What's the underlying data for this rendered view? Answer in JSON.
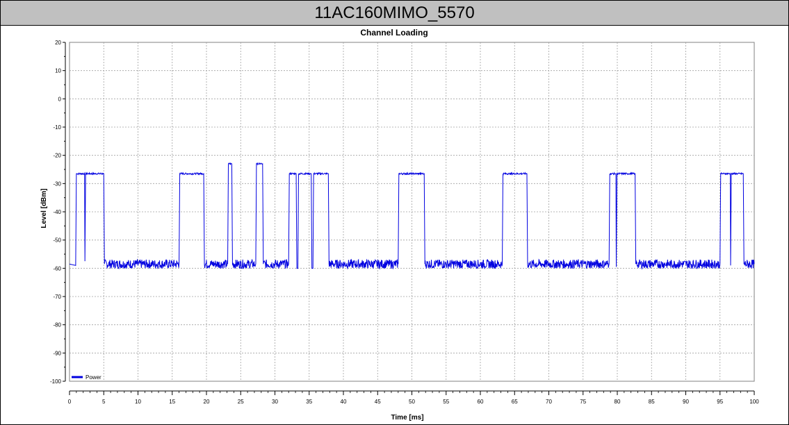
{
  "window": {
    "title": "11AC160MIMO_5570"
  },
  "chart_data": {
    "type": "line",
    "title": "Channel Loading",
    "xlabel": "Time [ms]",
    "ylabel": "Level [dBm]",
    "xlim": [
      0,
      100
    ],
    "ylim": [
      -100,
      20
    ],
    "xticks": [
      0,
      5,
      10,
      15,
      20,
      25,
      30,
      35,
      40,
      45,
      50,
      55,
      60,
      65,
      70,
      75,
      80,
      85,
      90,
      95,
      100
    ],
    "yticks": [
      20,
      10,
      0,
      -10,
      -20,
      -30,
      -40,
      -50,
      -60,
      -70,
      -80,
      -90,
      -100
    ],
    "grid": true,
    "legend": {
      "position": "bottom-left",
      "entries": [
        "Power"
      ]
    },
    "series": [
      {
        "name": "Power",
        "color": "#0000e0",
        "points": [
          [
            0,
            -58.5
          ],
          [
            0.9,
            -59
          ],
          [
            1.0,
            -26.5
          ],
          [
            2.2,
            -26.5
          ],
          [
            2.25,
            -57.5
          ],
          [
            2.35,
            -26.5
          ],
          [
            5.0,
            -26.5
          ],
          [
            5.1,
            -58.5
          ],
          [
            16.0,
            -58.5
          ],
          [
            16.1,
            -26.5
          ],
          [
            19.6,
            -26.5
          ],
          [
            19.7,
            -58.5
          ],
          [
            23.1,
            -58.5
          ],
          [
            23.2,
            -23
          ],
          [
            23.7,
            -23
          ],
          [
            23.8,
            -58.5
          ],
          [
            27.2,
            -58.5
          ],
          [
            27.3,
            -23
          ],
          [
            28.2,
            -23
          ],
          [
            28.3,
            -58.5
          ],
          [
            32.0,
            -58.5
          ],
          [
            32.1,
            -26.5
          ],
          [
            33.1,
            -26.5
          ],
          [
            33.2,
            -60
          ],
          [
            33.35,
            -60
          ],
          [
            33.45,
            -26.5
          ],
          [
            35.3,
            -26.5
          ],
          [
            35.4,
            -60
          ],
          [
            35.55,
            -60
          ],
          [
            35.65,
            -26.5
          ],
          [
            37.8,
            -26.5
          ],
          [
            37.9,
            -58.5
          ],
          [
            48.0,
            -58.5
          ],
          [
            48.1,
            -26.5
          ],
          [
            51.8,
            -26.5
          ],
          [
            51.9,
            -58.5
          ],
          [
            63.2,
            -58.5
          ],
          [
            63.3,
            -26.5
          ],
          [
            66.8,
            -26.5
          ],
          [
            66.9,
            -58.5
          ],
          [
            78.8,
            -58.5
          ],
          [
            78.9,
            -26.5
          ],
          [
            79.8,
            -26.5
          ],
          [
            79.85,
            -59.5
          ],
          [
            79.95,
            -26.5
          ],
          [
            82.6,
            -26.5
          ],
          [
            82.7,
            -58.5
          ],
          [
            95.0,
            -58.5
          ],
          [
            95.1,
            -26.5
          ],
          [
            96.5,
            -26.5
          ],
          [
            96.55,
            -59
          ],
          [
            96.65,
            -26.5
          ],
          [
            98.4,
            -26.5
          ],
          [
            98.5,
            -58.5
          ],
          [
            100,
            -58.5
          ]
        ]
      }
    ]
  }
}
